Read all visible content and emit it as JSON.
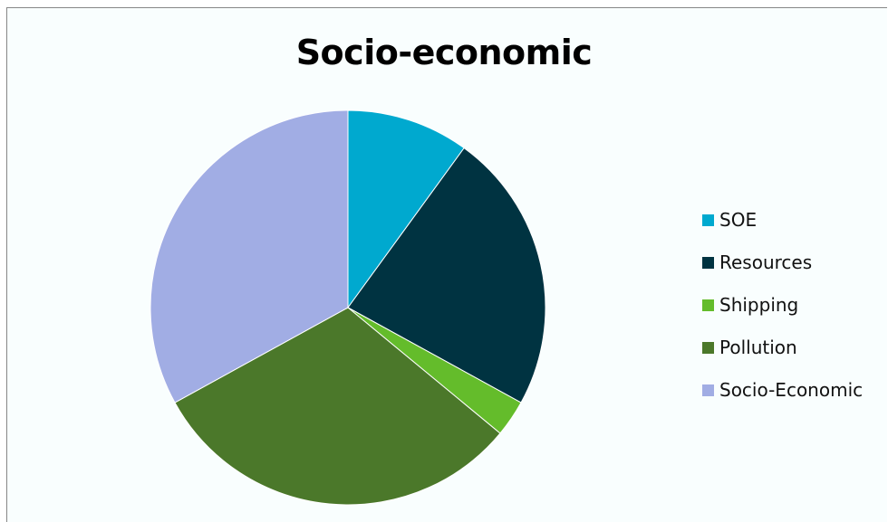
{
  "chart_data": {
    "type": "pie",
    "title": "Socio-economic",
    "legend_position": "right",
    "categories": [
      "SOE",
      "Resources",
      "Shipping",
      "Pollution",
      "Socio-Economic"
    ],
    "values": [
      10,
      23,
      3,
      31,
      33
    ],
    "colors": [
      "#00a9cf",
      "#003341",
      "#64bc2b",
      "#4b782a",
      "#a1ade4"
    ]
  }
}
